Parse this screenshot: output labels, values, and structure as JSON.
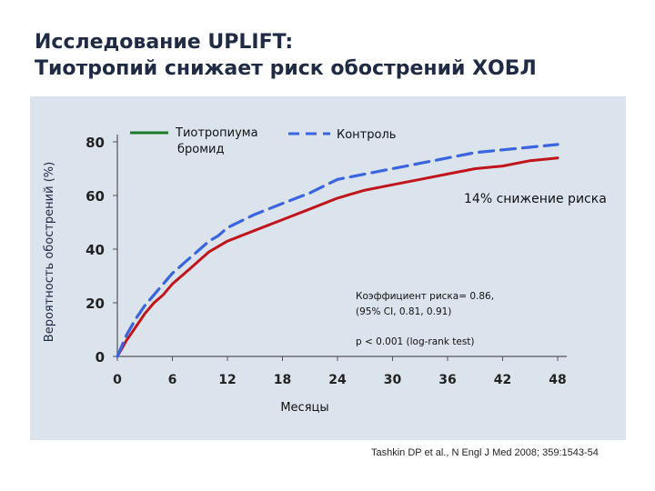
{
  "title": {
    "line1": "Исследование UPLIFT:",
    "line2": "Тиотропий снижает риск обострений ХОБЛ"
  },
  "citation": "Tashkin DP et al., N Engl J Med 2008; 359:1543-54",
  "chart_data": {
    "type": "line",
    "ylabel": "Вероятность обострений (%)",
    "xlabel": "Месяцы",
    "xlim": [
      0,
      48
    ],
    "ylim": [
      0,
      80
    ],
    "xticks": [
      "0",
      "6",
      "12",
      "18",
      "24",
      "30",
      "36",
      "42",
      "48"
    ],
    "yticks": [
      "0",
      "20",
      "40",
      "60",
      "80"
    ],
    "grid": false,
    "legend_position": "top",
    "series": [
      {
        "name_line1": "Тиотропиума",
        "name_line2": "бромид",
        "color": "#c0151b",
        "style": "solid",
        "x": [
          0,
          1,
          2,
          3,
          4,
          5,
          6,
          7,
          8,
          9,
          10,
          11,
          12,
          15,
          18,
          21,
          24,
          27,
          30,
          33,
          36,
          39,
          42,
          45,
          48
        ],
        "y": [
          0,
          6,
          11,
          16,
          20,
          23,
          27,
          30,
          33,
          36,
          39,
          41,
          43,
          47,
          51,
          55,
          59,
          62,
          64,
          66,
          68,
          70,
          71,
          73,
          74
        ]
      },
      {
        "name": "Контроль",
        "color": "#3a64e0",
        "style": "dashed",
        "x": [
          0,
          1,
          2,
          3,
          4,
          5,
          6,
          7,
          8,
          9,
          10,
          11,
          12,
          15,
          18,
          21,
          24,
          27,
          30,
          33,
          36,
          39,
          42,
          45,
          48
        ],
        "y": [
          0,
          8,
          14,
          19,
          23,
          27,
          31,
          34,
          37,
          40,
          43,
          45,
          48,
          53,
          57,
          61,
          66,
          68,
          70,
          72,
          74,
          76,
          77,
          78,
          79
        ]
      }
    ],
    "annotations": {
      "reduction": "14% снижение риска",
      "hr_line1": "Коэффициент риска= 0.86,",
      "hr_line2": "(95% CI, 0.81, 0.91)",
      "pvalue": "p < 0.001 (log-rank test)"
    }
  }
}
